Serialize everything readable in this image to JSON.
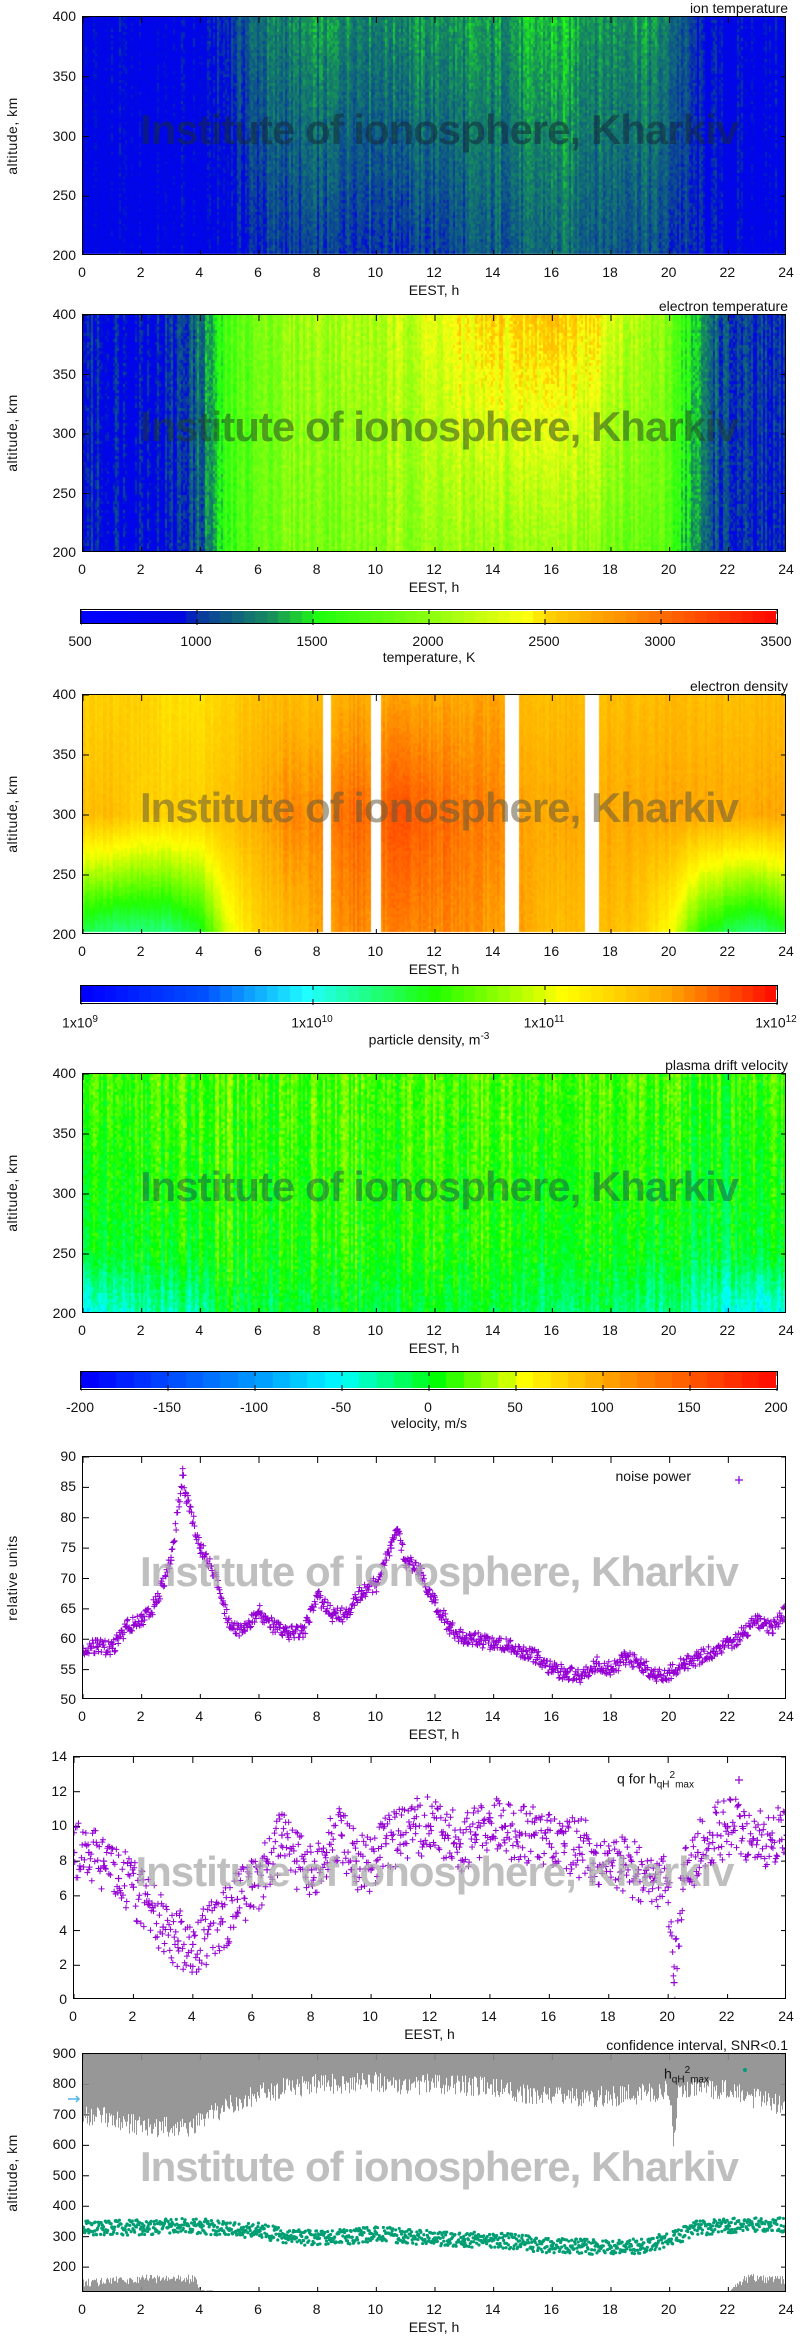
{
  "watermark": "Institute of ionosphere, Kharkiv",
  "colors": {
    "scatter": "#9400d3",
    "hmax": "#009e73",
    "confidence": "#8c8c8c",
    "arrow": "#56b4e9"
  },
  "chart_data": [
    {
      "id": "ion-temperature",
      "type": "heatmap",
      "title": "ion temperature",
      "xlabel": "EEST, h",
      "ylabel": "altitude, km",
      "xlim": [
        0,
        24
      ],
      "ylim": [
        200,
        400
      ],
      "xticks": [
        0,
        2,
        4,
        6,
        8,
        10,
        12,
        14,
        16,
        18,
        20,
        22,
        24
      ],
      "yticks": [
        200,
        250,
        300,
        350,
        400
      ],
      "colorscale": "temperature",
      "hours": [
        0,
        1,
        2,
        3,
        4,
        5,
        6,
        7,
        8,
        9,
        10,
        11,
        12,
        13,
        14,
        15,
        16,
        17,
        18,
        19,
        20,
        21,
        22,
        23,
        24
      ],
      "altitudes": [
        200,
        400
      ],
      "values": [
        [
          800,
          800,
          800,
          800,
          800,
          850,
          950,
          1000,
          1000,
          1000,
          1000,
          1000,
          1000,
          1050,
          1100,
          1100,
          1150,
          1150,
          1100,
          1100,
          1000,
          900,
          850,
          800,
          800
        ],
        [
          850,
          850,
          800,
          800,
          850,
          1000,
          1200,
          1250,
          1300,
          1300,
          1250,
          1300,
          1300,
          1300,
          1300,
          1350,
          1400,
          1350,
          1300,
          1350,
          1200,
          900,
          850,
          850,
          850
        ]
      ],
      "gaps": [
        [
          16.98,
          17.03
        ]
      ]
    },
    {
      "id": "electron-temperature",
      "type": "heatmap",
      "title": "electron temperature",
      "xlabel": "EEST, h",
      "ylabel": "altitude, km",
      "xlim": [
        0,
        24
      ],
      "ylim": [
        200,
        400
      ],
      "xticks": [
        0,
        2,
        4,
        6,
        8,
        10,
        12,
        14,
        16,
        18,
        20,
        22,
        24
      ],
      "yticks": [
        200,
        250,
        300,
        350,
        400
      ],
      "colorscale": "temperature",
      "hours": [
        0,
        1,
        2,
        3,
        4,
        5,
        6,
        7,
        8,
        9,
        10,
        11,
        12,
        13,
        14,
        15,
        16,
        17,
        18,
        19,
        20,
        21,
        22,
        23,
        24
      ],
      "altitudes": [
        200,
        400
      ],
      "values": [
        [
          950,
          900,
          900,
          900,
          1100,
          1600,
          1800,
          1900,
          1900,
          1900,
          1950,
          2000,
          2000,
          2000,
          2000,
          2000,
          2050,
          2000,
          1900,
          1800,
          1700,
          1200,
          950,
          900,
          900
        ],
        [
          950,
          900,
          900,
          950,
          1200,
          1700,
          1900,
          2000,
          2100,
          2100,
          2100,
          2200,
          2300,
          2400,
          2500,
          2500,
          2600,
          2500,
          2300,
          2100,
          1900,
          1300,
          1000,
          950,
          950
        ]
      ],
      "gaps": []
    },
    {
      "id": "electron-density",
      "type": "heatmap",
      "title": "electron density",
      "xlabel": "EEST, h",
      "ylabel": "altitude, km",
      "xlim": [
        0,
        24
      ],
      "ylim": [
        200,
        400
      ],
      "xticks": [
        0,
        2,
        4,
        6,
        8,
        10,
        12,
        14,
        16,
        18,
        20,
        22,
        24
      ],
      "yticks": [
        200,
        250,
        300,
        350,
        400
      ],
      "colorscale": "density",
      "value_units": "log10 m^-3",
      "hours": [
        0,
        1,
        2,
        3,
        4,
        5,
        6,
        7,
        8,
        9,
        10,
        11,
        12,
        13,
        14,
        15,
        16,
        17,
        18,
        19,
        20,
        21,
        22,
        23,
        24
      ],
      "altitudes": [
        200,
        300,
        400
      ],
      "values": [
        [
          10.3,
          10.2,
          10.2,
          10.2,
          10.4,
          11.0,
          11.3,
          11.4,
          11.5,
          11.6,
          11.6,
          11.6,
          11.6,
          11.6,
          11.5,
          11.5,
          11.4,
          11.4,
          11.4,
          11.3,
          11.0,
          10.5,
          10.3,
          10.2,
          10.4
        ],
        [
          11.4,
          11.4,
          11.3,
          11.3,
          11.3,
          11.4,
          11.5,
          11.6,
          11.6,
          11.7,
          11.7,
          11.75,
          11.7,
          11.65,
          11.6,
          11.5,
          11.5,
          11.5,
          11.5,
          11.5,
          11.5,
          11.5,
          11.5,
          11.5,
          11.5
        ],
        [
          11.3,
          11.3,
          11.3,
          11.2,
          11.2,
          11.3,
          11.4,
          11.4,
          11.4,
          11.5,
          11.5,
          11.5,
          11.5,
          11.5,
          11.5,
          11.4,
          11.4,
          11.4,
          11.4,
          11.4,
          11.4,
          11.4,
          11.4,
          11.4,
          11.4
        ]
      ],
      "gaps": [
        [
          8.15,
          8.4
        ],
        [
          9.8,
          10.1
        ],
        [
          14.35,
          14.85
        ],
        [
          17.05,
          17.55
        ]
      ]
    },
    {
      "id": "plasma-drift-velocity",
      "type": "heatmap",
      "title": "plasma drift velocity",
      "xlabel": "EEST, h",
      "ylabel": "altitude, km",
      "xlim": [
        0,
        24
      ],
      "ylim": [
        200,
        400
      ],
      "xticks": [
        0,
        2,
        4,
        6,
        8,
        10,
        12,
        14,
        16,
        18,
        20,
        22,
        24
      ],
      "yticks": [
        200,
        250,
        300,
        350,
        400
      ],
      "colorscale": "velocity",
      "hours": [
        0,
        1,
        2,
        3,
        4,
        5,
        6,
        7,
        8,
        9,
        10,
        11,
        12,
        13,
        14,
        15,
        16,
        17,
        18,
        19,
        20,
        21,
        22,
        23,
        24
      ],
      "altitudes": [
        200,
        250,
        400
      ],
      "values": [
        [
          -60,
          -50,
          -40,
          -40,
          -30,
          -10,
          -10,
          -10,
          -10,
          -10,
          -10,
          -10,
          -10,
          -10,
          -10,
          -15,
          -20,
          -20,
          -20,
          -30,
          -30,
          -40,
          -50,
          -60,
          -60
        ],
        [
          -10,
          -10,
          -5,
          -5,
          0,
          5,
          5,
          5,
          5,
          5,
          5,
          5,
          5,
          5,
          5,
          0,
          0,
          0,
          0,
          -5,
          -5,
          -10,
          -10,
          -10,
          -10
        ],
        [
          10,
          10,
          10,
          15,
          15,
          15,
          15,
          15,
          15,
          15,
          15,
          15,
          15,
          15,
          15,
          15,
          15,
          15,
          15,
          15,
          15,
          10,
          10,
          10,
          10
        ]
      ],
      "gaps": []
    },
    {
      "id": "noise-power",
      "type": "scatter",
      "title": "",
      "legend": "noise power",
      "legend_position": "top-right",
      "xlabel": "EEST, h",
      "ylabel": "relative units",
      "xlim": [
        0,
        24
      ],
      "ylim": [
        50,
        90
      ],
      "xticks": [
        0,
        2,
        4,
        6,
        8,
        10,
        12,
        14,
        16,
        18,
        20,
        22,
        24
      ],
      "yticks": [
        50,
        55,
        60,
        65,
        70,
        75,
        80,
        85,
        90
      ],
      "marker": "plus",
      "x": [
        0,
        0.5,
        1,
        1.5,
        2,
        2.5,
        3,
        3.4,
        3.5,
        4,
        4.5,
        5,
        5.5,
        6,
        6.5,
        7,
        7.5,
        8,
        8.5,
        9,
        9.5,
        10,
        10.5,
        10.7,
        11,
        11.5,
        12,
        12.5,
        13,
        13.5,
        14,
        14.5,
        15,
        15.5,
        16,
        16.5,
        17,
        17.5,
        18,
        18.5,
        19,
        19.5,
        20,
        20.5,
        21,
        21.5,
        22,
        22.5,
        23,
        23.5,
        24
      ],
      "y": [
        58.5,
        58.8,
        58.5,
        62,
        63,
        66,
        73,
        87,
        84,
        75,
        71,
        62,
        61.5,
        64.5,
        62,
        61,
        61,
        67,
        64,
        64,
        68,
        69,
        75,
        78,
        73,
        71,
        66,
        62,
        60,
        60,
        59,
        59,
        58,
        57,
        55,
        54.5,
        54,
        56,
        55,
        57,
        56,
        54,
        54.5,
        56,
        57,
        58,
        59,
        61,
        63,
        62,
        65
      ]
    },
    {
      "id": "q-for-hmax",
      "type": "scatter",
      "title": "",
      "legend": {
        "main": "q for h",
        "sub": "qH",
        "sup": "2",
        "sub2": "max"
      },
      "legend_position": "top-right",
      "xlabel": "EEST, h",
      "ylabel": "",
      "xlim": [
        0,
        24
      ],
      "ylim": [
        0,
        14
      ],
      "xticks": [
        0,
        2,
        4,
        6,
        8,
        10,
        12,
        14,
        16,
        18,
        20,
        22,
        24
      ],
      "yticks": [
        0,
        2,
        4,
        6,
        8,
        10,
        12,
        14
      ],
      "marker": "plus",
      "x": [
        0,
        0.5,
        1,
        1.5,
        2,
        2.5,
        3,
        3.5,
        4,
        4.5,
        5,
        5.5,
        6,
        6.5,
        7,
        7.5,
        8,
        8.5,
        9,
        9.5,
        10,
        10.5,
        11,
        11.5,
        12,
        12.5,
        13,
        13.5,
        14,
        14.5,
        15,
        15.5,
        16,
        16.5,
        17,
        17.5,
        18,
        18.5,
        19,
        19.5,
        20,
        20.2,
        20.5,
        21,
        21.5,
        22,
        22.5,
        23,
        23.5,
        24
      ],
      "y": [
        8.5,
        8.5,
        8,
        7,
        6.5,
        5.5,
        4.2,
        3.4,
        3.2,
        3.8,
        4.5,
        5.8,
        6.5,
        7.5,
        9.5,
        8,
        7.5,
        8.5,
        9.5,
        8,
        7.5,
        9,
        9.5,
        10,
        10,
        9.5,
        9,
        9.5,
        10.5,
        10,
        9.5,
        9.5,
        9,
        9,
        8.8,
        8.5,
        8,
        7.8,
        7.5,
        6.8,
        6.5,
        1,
        7,
        8.5,
        9.5,
        10,
        10,
        9.2,
        9.2,
        9.5
      ]
    },
    {
      "id": "confidence-interval",
      "type": "scatter",
      "title": "confidence interval, SNR<0.1",
      "legend": {
        "main": "h",
        "sub": "qH",
        "sup": "2",
        "sub2": "max"
      },
      "legend_position": "top-right",
      "xlabel": "EEST, h",
      "ylabel": "altitude, km",
      "xlim": [
        0,
        24
      ],
      "ylim": [
        115,
        900
      ],
      "xticks": [
        0,
        2,
        4,
        6,
        8,
        10,
        12,
        14,
        16,
        18,
        20,
        22,
        24
      ],
      "yticks": [
        200,
        300,
        400,
        500,
        600,
        700,
        800,
        900
      ],
      "hmax": {
        "x": [
          0,
          1,
          2,
          3,
          4,
          5,
          6,
          7,
          8,
          9,
          10,
          11,
          12,
          13,
          14,
          15,
          16,
          17,
          18,
          19,
          20,
          21,
          22,
          23,
          24
        ],
        "y": [
          330,
          330,
          330,
          335,
          335,
          325,
          320,
          300,
          295,
          300,
          310,
          300,
          295,
          290,
          290,
          280,
          270,
          268,
          265,
          270,
          290,
          330,
          335,
          340,
          340
        ]
      },
      "upper_band": {
        "x": [
          0,
          1,
          2,
          3,
          3.5,
          4,
          5,
          6,
          7,
          8,
          9,
          10,
          11,
          12,
          13,
          14,
          15,
          16,
          17,
          18,
          19,
          20,
          20.1,
          20.3,
          21,
          22,
          23,
          24
        ],
        "lower_edge": [
          700,
          690,
          660,
          660,
          650,
          680,
          730,
          770,
          790,
          800,
          805,
          810,
          800,
          800,
          795,
          790,
          770,
          760,
          760,
          760,
          770,
          780,
          600,
          780,
          790,
          780,
          750,
          730
        ]
      },
      "lower_band": {
        "x": [
          0,
          1,
          2,
          3,
          3.8,
          4,
          6,
          10,
          15,
          20,
          22,
          22.5,
          23,
          24
        ],
        "upper_edge": [
          165,
          170,
          175,
          180,
          175,
          125,
          118,
          118,
          118,
          120,
          118,
          175,
          180,
          170
        ]
      }
    }
  ],
  "colorbars": {
    "temperature": {
      "label": "temperature, K",
      "range": [
        500,
        3500
      ],
      "ticks": [
        "500",
        "1000",
        "1500",
        "2000",
        "2500",
        "3000",
        "3500"
      ],
      "stops": [
        [
          500,
          "#0000ff"
        ],
        [
          900,
          "#0008e0"
        ],
        [
          1000,
          "#0a3c9c"
        ],
        [
          1300,
          "#17905a"
        ],
        [
          1500,
          "#20ff10"
        ],
        [
          2000,
          "#90ff10"
        ],
        [
          2400,
          "#ffff10"
        ],
        [
          2500,
          "#ffd000"
        ],
        [
          3000,
          "#ff6a00"
        ],
        [
          3500,
          "#ff0000"
        ]
      ]
    },
    "density": {
      "label": "particle density, m",
      "label_sup": "-3",
      "range": [
        9,
        12
      ],
      "log": true,
      "ticks": [
        {
          "base": "1x10",
          "exp": "9"
        },
        {
          "base": "1x10",
          "exp": "10"
        },
        {
          "base": "1x10",
          "exp": "11"
        },
        {
          "base": "1x10",
          "exp": "12"
        }
      ],
      "stops": [
        [
          9,
          "#0000ff"
        ],
        [
          9.5,
          "#0050ff"
        ],
        [
          9.95,
          "#20ffff"
        ],
        [
          10.5,
          "#20ff00"
        ],
        [
          11.05,
          "#ffff00"
        ],
        [
          11.5,
          "#ffaa00"
        ],
        [
          12,
          "#ff0000"
        ]
      ]
    },
    "velocity": {
      "label": "velocity, m/s",
      "range": [
        -200,
        200
      ],
      "ticks": [
        "-200",
        "-150",
        "-100",
        "-50",
        "0",
        "50",
        "100",
        "150",
        "200"
      ],
      "stops": [
        [
          -200,
          "#0000ff"
        ],
        [
          -100,
          "#00a0ff"
        ],
        [
          -55,
          "#00ffff"
        ],
        [
          0,
          "#00ff00"
        ],
        [
          50,
          "#ffff00"
        ],
        [
          100,
          "#ffa000"
        ],
        [
          200,
          "#ff0000"
        ]
      ]
    }
  }
}
